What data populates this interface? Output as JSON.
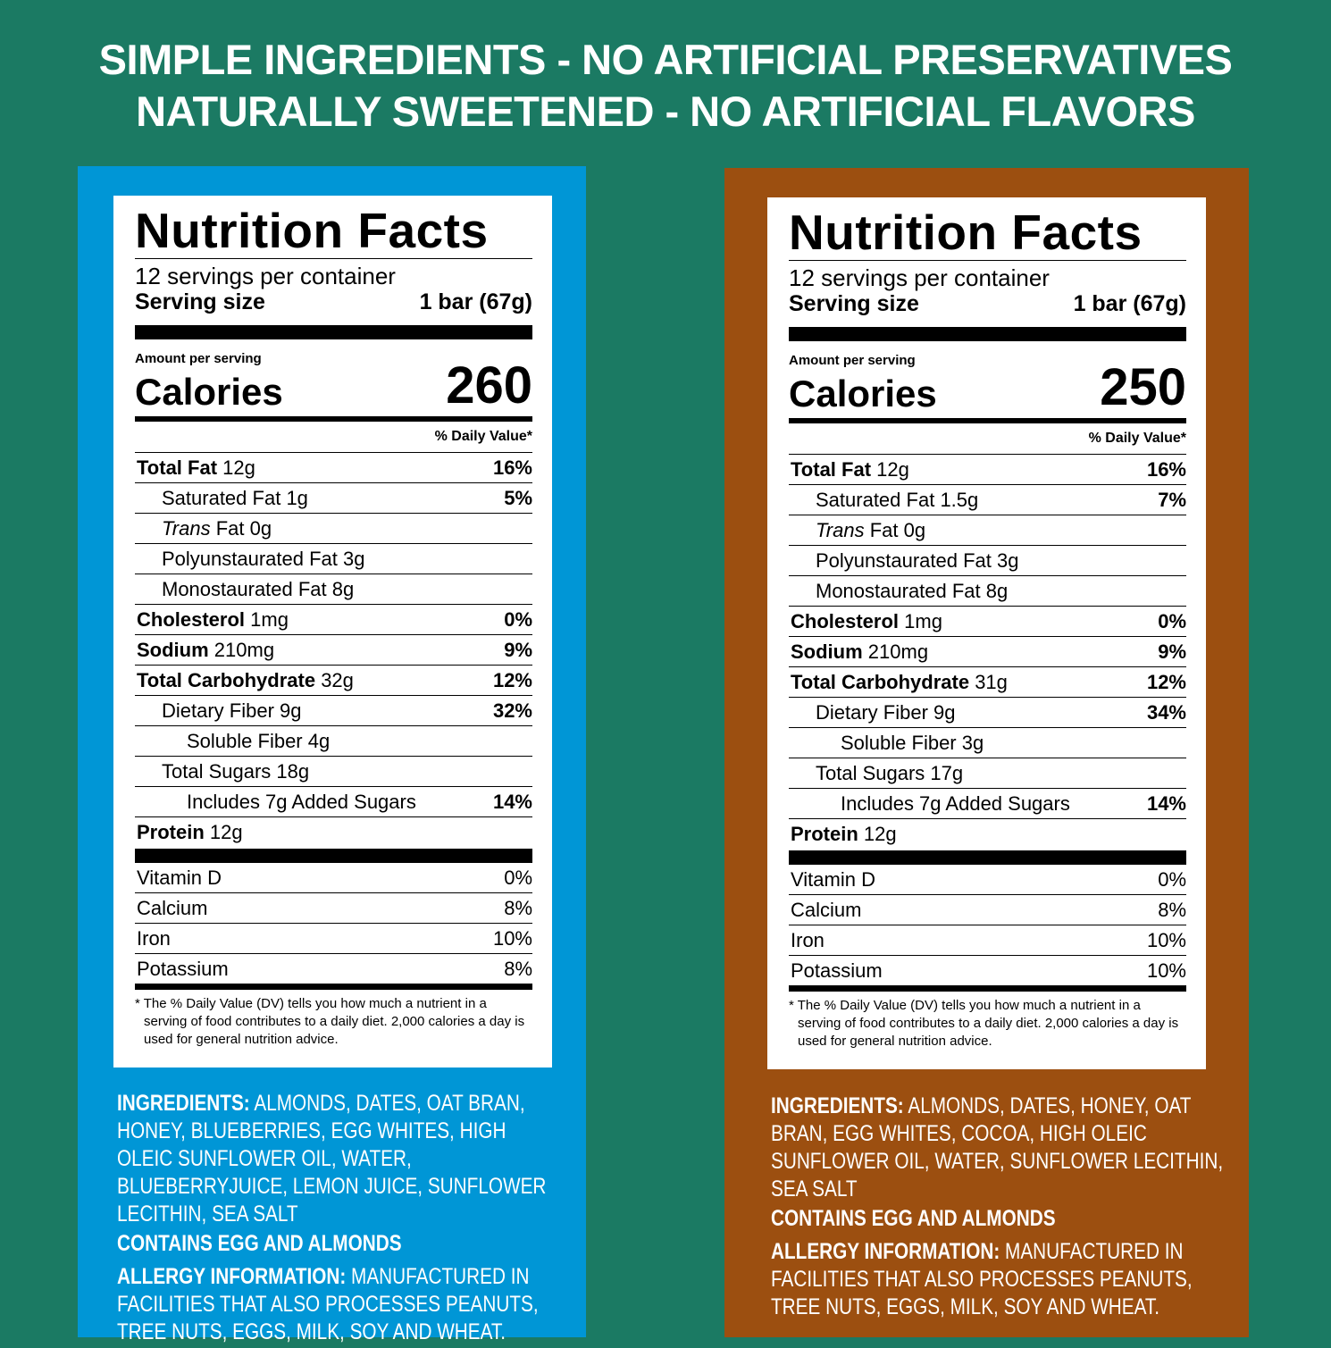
{
  "header": {
    "lines": [
      "SIMPLE INGREDIENTS - NO ARTIFICIAL PRESERVATIVES",
      "NATURALLY SWEETENED - NO ARTIFICIAL FLAVORS"
    ]
  },
  "panels": [
    {
      "label": {
        "title": "Nutrition Facts",
        "servings": "12 servings per container",
        "serving_size_label": "Serving size",
        "serving_size": "1 bar (67g)",
        "amount_per_serving": "Amount per serving",
        "calories_label": "Calories",
        "calories": 260,
        "dv_header": "% Daily Value*",
        "rows": [
          {
            "name": "Total Fat",
            "amount": "12g",
            "dv": "16%",
            "level": 0
          },
          {
            "name": "Saturated Fat",
            "amount": "1g",
            "dv": "5%",
            "level": 1
          },
          {
            "name_italic": "Trans",
            "name": "Fat",
            "amount": "0g",
            "level": 1
          },
          {
            "name": "Polyunstaurated Fat",
            "amount": "3g",
            "level": 1
          },
          {
            "name": "Monostaurated Fat",
            "amount": "8g",
            "level": 1
          },
          {
            "name": "Cholesterol",
            "amount": "1mg",
            "dv": "0%",
            "level": 0
          },
          {
            "name": "Sodium",
            "amount": "210mg",
            "dv": "9%",
            "level": 0
          },
          {
            "name": "Total Carbohydrate",
            "amount": "32g",
            "dv": "12%",
            "level": 0
          },
          {
            "name": "Dietary Fiber",
            "amount": "9g",
            "dv": "32%",
            "level": 1
          },
          {
            "name": "Soluble Fiber",
            "amount": "4g",
            "level": 2
          },
          {
            "name": "Total Sugars",
            "amount": "18g",
            "level": 1
          },
          {
            "name": "Includes 7g Added Sugars",
            "dv": "14%",
            "level": 2
          },
          {
            "name": "Protein",
            "amount": "12g",
            "level": 0
          }
        ],
        "vitamins": [
          {
            "name": "Vitamin D",
            "dv": "0%"
          },
          {
            "name": "Calcium",
            "dv": "8%"
          },
          {
            "name": "Iron",
            "dv": "10%"
          },
          {
            "name": "Potassium",
            "dv": "8%"
          }
        ],
        "footnote": "* The % Daily Value (DV) tells you how much a nutrient in a serving of food contributes to a daily diet. 2,000 calories a day is used for general nutrition advice."
      },
      "info": [
        {
          "label": "INGREDIENTS:",
          "text": "ALMONDS, DATES, OAT BRAN, HONEY, BLUEBERRIES, EGG WHITES, HIGH OLEIC SUNFLOWER OIL, WATER, BLUEBERRYJUICE, LEMON JUICE, SUNFLOWER LECITHIN, SEA SALT"
        },
        {
          "label": "CONTAINS EGG AND ALMONDS"
        },
        {
          "label": "ALLERGY INFORMATION:",
          "text": "MANUFACTURED IN FACILITIES THAT ALSO PROCESSES PEANUTS, TREE NUTS, EGGS, MILK, SOY AND WHEAT."
        }
      ]
    },
    {
      "label": {
        "title": "Nutrition Facts",
        "servings": "12 servings per container",
        "serving_size_label": "Serving size",
        "serving_size": "1 bar (67g)",
        "amount_per_serving": "Amount per serving",
        "calories_label": "Calories",
        "calories": 250,
        "dv_header": "% Daily Value*",
        "rows": [
          {
            "name": "Total Fat",
            "amount": "12g",
            "dv": "16%",
            "level": 0
          },
          {
            "name": "Saturated Fat",
            "amount": "1.5g",
            "dv": "7%",
            "level": 1
          },
          {
            "name_italic": "Trans",
            "name": "Fat",
            "amount": "0g",
            "level": 1
          },
          {
            "name": "Polyunstaurated Fat",
            "amount": "3g",
            "level": 1
          },
          {
            "name": "Monostaurated Fat",
            "amount": "8g",
            "level": 1
          },
          {
            "name": "Cholesterol",
            "amount": "1mg",
            "dv": "0%",
            "level": 0
          },
          {
            "name": "Sodium",
            "amount": "210mg",
            "dv": "9%",
            "level": 0
          },
          {
            "name": "Total Carbohydrate",
            "amount": "31g",
            "dv": "12%",
            "level": 0
          },
          {
            "name": "Dietary Fiber",
            "amount": "9g",
            "dv": "34%",
            "level": 1
          },
          {
            "name": "Soluble Fiber",
            "amount": "3g",
            "level": 2
          },
          {
            "name": "Total Sugars",
            "amount": "17g",
            "level": 1
          },
          {
            "name": "Includes 7g Added Sugars",
            "dv": "14%",
            "level": 2
          },
          {
            "name": "Protein",
            "amount": "12g",
            "level": 0
          }
        ],
        "vitamins": [
          {
            "name": "Vitamin D",
            "dv": "0%"
          },
          {
            "name": "Calcium",
            "dv": "8%"
          },
          {
            "name": "Iron",
            "dv": "10%"
          },
          {
            "name": "Potassium",
            "dv": "10%"
          }
        ],
        "footnote": "* The % Daily Value (DV) tells you how much a nutrient in a serving of food contributes to a daily diet. 2,000 calories a day is used for general nutrition advice."
      },
      "info": [
        {
          "label": "INGREDIENTS:",
          "text": "ALMONDS, DATES, HONEY, OAT BRAN, EGG WHITES, COCOA, HIGH OLEIC SUNFLOWER OIL, WATER, SUNFLOWER LECITHIN, SEA SALT"
        },
        {
          "label": "CONTAINS EGG AND ALMONDS"
        },
        {
          "label": "ALLERGY INFORMATION:",
          "text": "MANUFACTURED IN FACILITIES THAT ALSO PROCESSES PEANUTS, TREE NUTS, EGGS, MILK, SOY AND WHEAT."
        }
      ]
    }
  ]
}
